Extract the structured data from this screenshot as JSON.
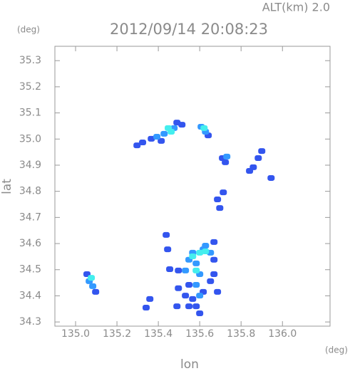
{
  "chart_data": {
    "type": "scatter",
    "title": "2012/09/14 20:08:23",
    "subtitle": "ALT(km) 2.0",
    "x_label": "lon",
    "y_label": "lat",
    "x_unit": "(deg)",
    "y_unit": "(deg)",
    "xlim": [
      134.9,
      136.23
    ],
    "ylim": [
      34.284,
      35.355
    ],
    "xticks": [
      {
        "value": 135.0,
        "label": "135.0"
      },
      135.2,
      135.4,
      135.6,
      135.8,
      {
        "value": 136.0,
        "label": "136.0"
      }
    ],
    "yticks": [
      34.3,
      34.4,
      34.5,
      34.6,
      34.7,
      34.8,
      34.9,
      {
        "value": 35.0,
        "label": "35.0"
      },
      35.1,
      35.2,
      35.3
    ],
    "series": [
      {
        "color": "#3355ee",
        "x": [
          135.297,
          135.324,
          135.366,
          135.414,
          135.49,
          135.514,
          135.641,
          135.71,
          135.724,
          135.859,
          135.883,
          135.9,
          135.841,
          135.945,
          135.686,
          135.714,
          135.697,
          135.438,
          135.445,
          135.455,
          135.359,
          135.341,
          135.497,
          135.49,
          135.055,
          135.097,
          135.548,
          135.566,
          135.583,
          135.6,
          135.669,
          135.686,
          135.617,
          135.531,
          135.548,
          135.652,
          135.669,
          135.497,
          135.669
        ],
        "y": [
          34.976,
          34.987,
          35.001,
          34.993,
          35.063,
          35.055,
          35.014,
          34.927,
          34.911,
          34.892,
          34.927,
          34.954,
          34.878,
          34.851,
          34.769,
          34.796,
          34.736,
          34.633,
          34.578,
          34.502,
          34.388,
          34.355,
          34.429,
          34.36,
          34.483,
          34.415,
          34.442,
          34.388,
          34.36,
          34.333,
          34.483,
          34.415,
          34.415,
          34.401,
          34.36,
          34.456,
          34.606,
          34.497,
          34.538
        ]
      },
      {
        "color": "#3399ff",
        "x": [
          135.393,
          135.428,
          135.476,
          135.628,
          135.607,
          135.731,
          135.066,
          135.083,
          135.566,
          135.583,
          135.6,
          135.617,
          135.628,
          135.652,
          135.583,
          135.6,
          135.531,
          135.548
        ],
        "y": [
          35.009,
          35.02,
          35.042,
          35.028,
          35.047,
          34.933,
          34.456,
          34.437,
          34.565,
          34.524,
          34.483,
          34.578,
          34.592,
          34.565,
          34.442,
          34.401,
          34.497,
          34.538
        ]
      },
      {
        "color": "#44eeee",
        "x": [
          135.448,
          135.462,
          135.621,
          135.076,
          135.566,
          135.6,
          135.628,
          135.583
        ],
        "y": [
          35.042,
          35.028,
          35.042,
          34.469,
          34.551,
          34.565,
          34.57,
          34.497
        ]
      }
    ]
  }
}
